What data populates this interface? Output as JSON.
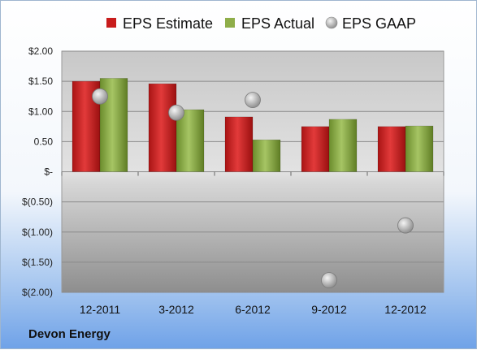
{
  "company": "Devon Energy",
  "colors": {
    "estimate": "#cc1f1f",
    "actual": "#7fa13a",
    "gaap": "#b7b7b7"
  },
  "chart_data": {
    "type": "bar",
    "categories": [
      "12-2011",
      "3-2012",
      "6-2012",
      "9-2012",
      "12-2012"
    ],
    "series": [
      {
        "name": "EPS Estimate",
        "kind": "bar",
        "values": [
          1.5,
          1.46,
          0.91,
          0.75,
          0.75
        ]
      },
      {
        "name": "EPS Actual",
        "kind": "bar",
        "values": [
          1.55,
          1.03,
          0.53,
          0.87,
          0.76
        ]
      },
      {
        "name": "EPS GAAP",
        "kind": "marker",
        "values": [
          1.25,
          0.98,
          1.19,
          -1.8,
          -0.89
        ]
      }
    ],
    "ylim": [
      -2.0,
      2.0
    ],
    "yticks": [
      2.0,
      1.5,
      1.0,
      0.5,
      0.0,
      -0.5,
      -1.0,
      -1.5,
      -2.0
    ],
    "ytick_labels": [
      "$2.00",
      "$1.50",
      "$1.00",
      "0.50",
      "$-",
      "$(0.50)",
      "$(1.00)",
      "$(1.50)",
      "$(2.00)"
    ],
    "legend_position": "top",
    "grid": true,
    "xlabel": "",
    "ylabel": ""
  }
}
